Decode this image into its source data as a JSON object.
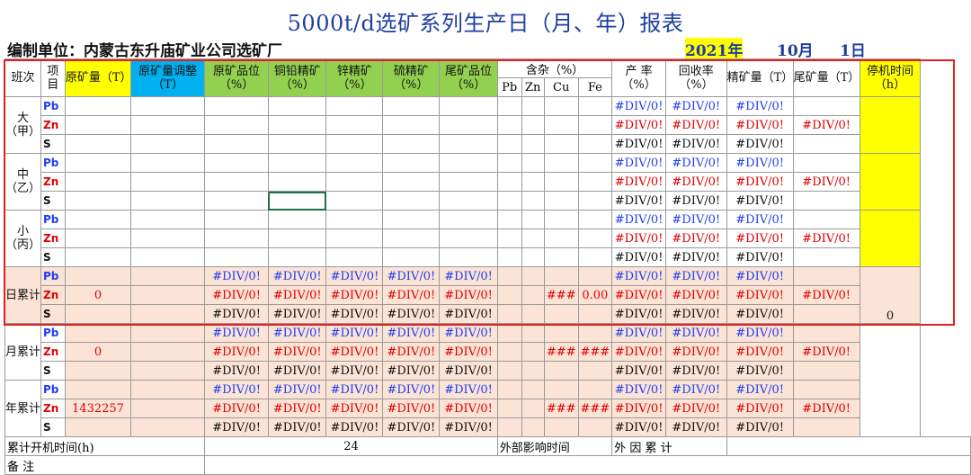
{
  "title": "5000t/d选矿系列生产日（月、年）报表",
  "unit_line": {
    "unit": "编制单位：内蒙古东升庙矿业公司选矿厂",
    "year": "2021年",
    "month": "10月",
    "day": "1日"
  },
  "headers": {
    "shift": "班次",
    "item": "项目",
    "raw_ore": "原矿量（T）",
    "raw_ore_adj": "原矿量调整（T）",
    "raw_grade": "原矿品位（%）",
    "cu_pb_conc": "铜铅精矿（%）",
    "zn_conc": "锌精矿（%）",
    "s_conc": "硫精矿（%）",
    "tail_grade": "尾矿品位（%）",
    "impurity": "含杂（%）",
    "imp_pb": "Pb",
    "imp_zn": "Zn",
    "imp_cu": "Cu",
    "imp_fe": "Fe",
    "yield": "产 率（%）",
    "recovery": "回收率（%）",
    "conc_qty": "精矿量（T）",
    "tail_qty": "尾矿量（T）",
    "downtime": "停机时间（h）"
  },
  "shifts": {
    "da": "大（甲）",
    "zhong": "中（乙）",
    "xiao": "小（丙）",
    "day_total": "日累计",
    "month_total": "月累计",
    "year_total": "年累计"
  },
  "items": {
    "pb": "Pb",
    "zn": "Zn",
    "s": "S"
  },
  "values": {
    "err": "#DIV/0!",
    "hash": "###",
    "day_raw_ore": "0",
    "day_fe": "0.00",
    "day_downtime": "0",
    "month_raw_ore": "0",
    "year_raw_ore": "1432257"
  },
  "footer": {
    "run_time_label": "累计开机时间(h)",
    "run_time_value": "24",
    "external_label": "外部影响时间",
    "external_total_label": "外 因 累 计",
    "remark_label": "备 注"
  }
}
